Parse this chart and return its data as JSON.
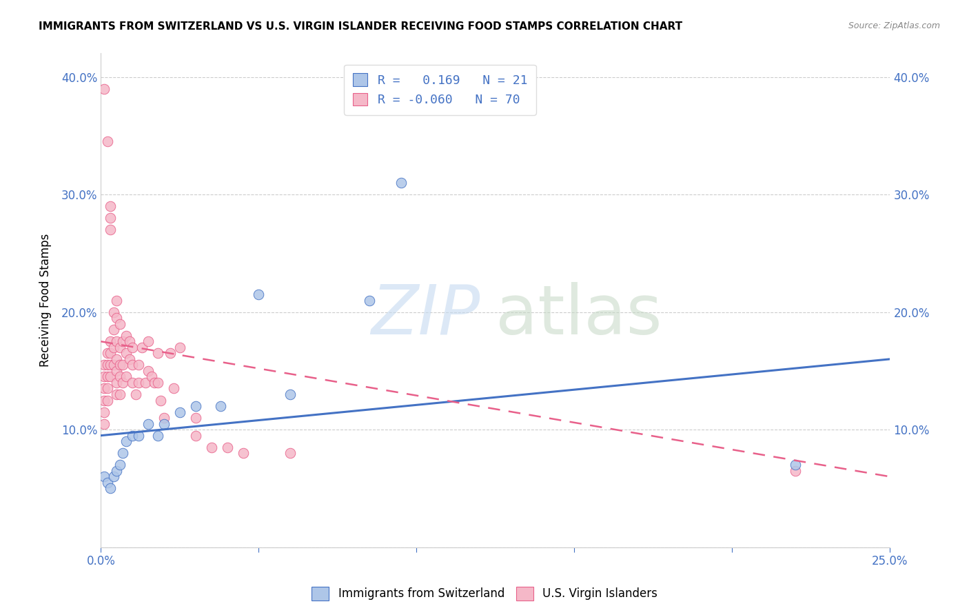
{
  "title": "IMMIGRANTS FROM SWITZERLAND VS U.S. VIRGIN ISLANDER RECEIVING FOOD STAMPS CORRELATION CHART",
  "source": "Source: ZipAtlas.com",
  "ylabel": "Receiving Food Stamps",
  "x_min": 0.0,
  "x_max": 0.25,
  "y_min": 0.0,
  "y_max": 0.42,
  "x_ticks": [
    0.0,
    0.05,
    0.1,
    0.15,
    0.2,
    0.25
  ],
  "x_tick_labels_show": [
    "0.0%",
    "",
    "",
    "",
    "",
    "25.0%"
  ],
  "y_ticks": [
    0.0,
    0.1,
    0.2,
    0.3,
    0.4
  ],
  "y_tick_labels_left": [
    "",
    "10.0%",
    "20.0%",
    "30.0%",
    "40.0%"
  ],
  "y_tick_labels_right": [
    "",
    "10.0%",
    "20.0%",
    "30.0%",
    "40.0%"
  ],
  "legend_R_blue": "0.169",
  "legend_N_blue": "21",
  "legend_R_pink": "-0.060",
  "legend_N_pink": "70",
  "blue_color": "#aec6e8",
  "pink_color": "#f5b8c8",
  "blue_line_color": "#4472c4",
  "pink_line_color": "#e8608a",
  "blue_trend_x0": 0.0,
  "blue_trend_y0": 0.095,
  "blue_trend_x1": 0.25,
  "blue_trend_y1": 0.16,
  "pink_trend_x0": 0.0,
  "pink_trend_y0": 0.175,
  "pink_trend_x1": 0.25,
  "pink_trend_y1": 0.06,
  "blue_scatter_x": [
    0.001,
    0.002,
    0.003,
    0.004,
    0.005,
    0.006,
    0.007,
    0.008,
    0.01,
    0.012,
    0.015,
    0.018,
    0.02,
    0.025,
    0.03,
    0.038,
    0.05,
    0.06,
    0.085,
    0.095,
    0.22
  ],
  "blue_scatter_y": [
    0.06,
    0.055,
    0.05,
    0.06,
    0.065,
    0.07,
    0.08,
    0.09,
    0.095,
    0.095,
    0.105,
    0.095,
    0.105,
    0.115,
    0.12,
    0.12,
    0.215,
    0.13,
    0.21,
    0.31,
    0.07
  ],
  "pink_scatter_x": [
    0.001,
    0.001,
    0.001,
    0.001,
    0.001,
    0.001,
    0.001,
    0.002,
    0.002,
    0.002,
    0.002,
    0.002,
    0.002,
    0.003,
    0.003,
    0.003,
    0.003,
    0.003,
    0.003,
    0.003,
    0.004,
    0.004,
    0.004,
    0.004,
    0.005,
    0.005,
    0.005,
    0.005,
    0.005,
    0.005,
    0.005,
    0.006,
    0.006,
    0.006,
    0.006,
    0.006,
    0.007,
    0.007,
    0.007,
    0.008,
    0.008,
    0.008,
    0.009,
    0.009,
    0.01,
    0.01,
    0.01,
    0.011,
    0.012,
    0.012,
    0.013,
    0.014,
    0.015,
    0.015,
    0.016,
    0.017,
    0.018,
    0.018,
    0.019,
    0.02,
    0.022,
    0.023,
    0.025,
    0.03,
    0.03,
    0.035,
    0.04,
    0.045,
    0.06,
    0.22
  ],
  "pink_scatter_y": [
    0.39,
    0.155,
    0.145,
    0.135,
    0.125,
    0.115,
    0.105,
    0.345,
    0.165,
    0.155,
    0.145,
    0.135,
    0.125,
    0.29,
    0.28,
    0.27,
    0.175,
    0.165,
    0.155,
    0.145,
    0.2,
    0.185,
    0.17,
    0.155,
    0.21,
    0.195,
    0.175,
    0.16,
    0.15,
    0.14,
    0.13,
    0.19,
    0.17,
    0.155,
    0.145,
    0.13,
    0.175,
    0.155,
    0.14,
    0.18,
    0.165,
    0.145,
    0.175,
    0.16,
    0.17,
    0.155,
    0.14,
    0.13,
    0.155,
    0.14,
    0.17,
    0.14,
    0.175,
    0.15,
    0.145,
    0.14,
    0.165,
    0.14,
    0.125,
    0.11,
    0.165,
    0.135,
    0.17,
    0.11,
    0.095,
    0.085,
    0.085,
    0.08,
    0.08,
    0.065
  ]
}
